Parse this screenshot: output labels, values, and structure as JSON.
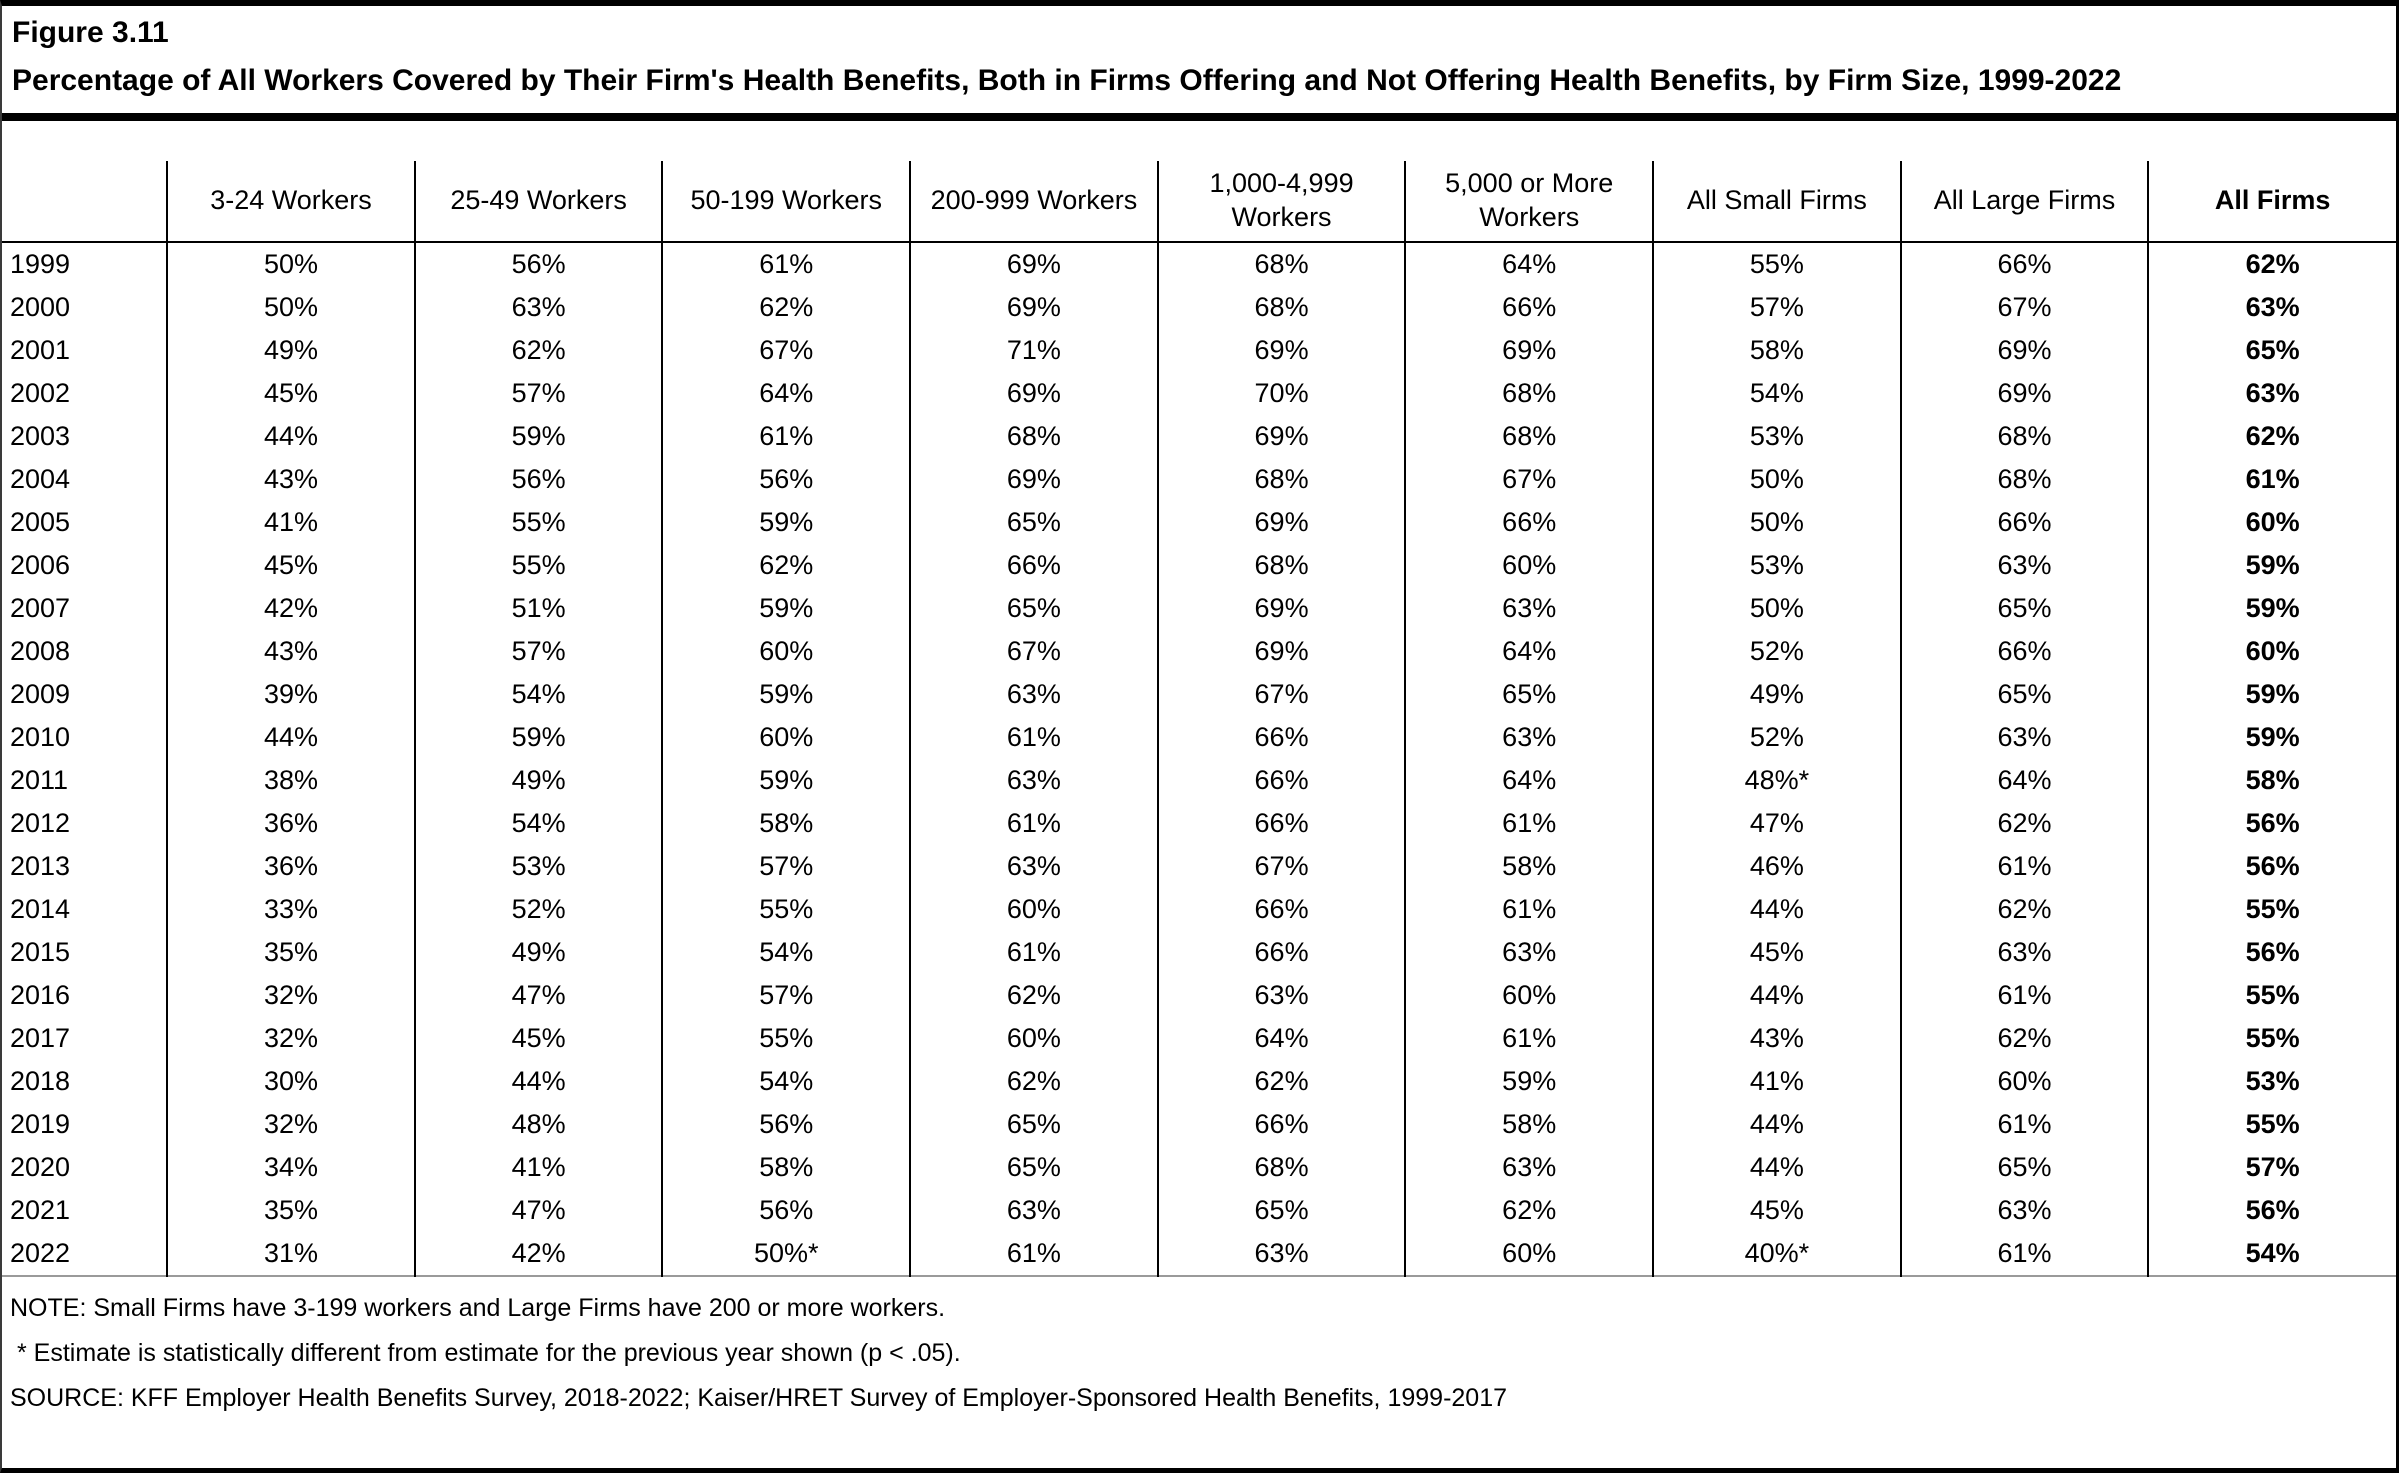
{
  "figure_label": "Figure 3.11",
  "title": "Percentage of All Workers Covered by Their Firm's Health Benefits, Both in Firms Offering and Not Offering Health Benefits, by Firm Size, 1999-2022",
  "chart_data": {
    "type": "table",
    "columns": [
      "",
      "3-24 Workers",
      "25-49 Workers",
      "50-199 Workers",
      "200-999 Workers",
      "1,000-4,999 Workers",
      "5,000 or More Workers",
      "All Small Firms",
      "All Large Firms",
      "All Firms"
    ],
    "rows": [
      {
        "year": "1999",
        "values": [
          "50%",
          "56%",
          "61%",
          "69%",
          "68%",
          "64%",
          "55%",
          "66%",
          "62%"
        ]
      },
      {
        "year": "2000",
        "values": [
          "50%",
          "63%",
          "62%",
          "69%",
          "68%",
          "66%",
          "57%",
          "67%",
          "63%"
        ]
      },
      {
        "year": "2001",
        "values": [
          "49%",
          "62%",
          "67%",
          "71%",
          "69%",
          "69%",
          "58%",
          "69%",
          "65%"
        ]
      },
      {
        "year": "2002",
        "values": [
          "45%",
          "57%",
          "64%",
          "69%",
          "70%",
          "68%",
          "54%",
          "69%",
          "63%"
        ]
      },
      {
        "year": "2003",
        "values": [
          "44%",
          "59%",
          "61%",
          "68%",
          "69%",
          "68%",
          "53%",
          "68%",
          "62%"
        ]
      },
      {
        "year": "2004",
        "values": [
          "43%",
          "56%",
          "56%",
          "69%",
          "68%",
          "67%",
          "50%",
          "68%",
          "61%"
        ]
      },
      {
        "year": "2005",
        "values": [
          "41%",
          "55%",
          "59%",
          "65%",
          "69%",
          "66%",
          "50%",
          "66%",
          "60%"
        ]
      },
      {
        "year": "2006",
        "values": [
          "45%",
          "55%",
          "62%",
          "66%",
          "68%",
          "60%",
          "53%",
          "63%",
          "59%"
        ]
      },
      {
        "year": "2007",
        "values": [
          "42%",
          "51%",
          "59%",
          "65%",
          "69%",
          "63%",
          "50%",
          "65%",
          "59%"
        ]
      },
      {
        "year": "2008",
        "values": [
          "43%",
          "57%",
          "60%",
          "67%",
          "69%",
          "64%",
          "52%",
          "66%",
          "60%"
        ]
      },
      {
        "year": "2009",
        "values": [
          "39%",
          "54%",
          "59%",
          "63%",
          "67%",
          "65%",
          "49%",
          "65%",
          "59%"
        ]
      },
      {
        "year": "2010",
        "values": [
          "44%",
          "59%",
          "60%",
          "61%",
          "66%",
          "63%",
          "52%",
          "63%",
          "59%"
        ]
      },
      {
        "year": "2011",
        "values": [
          "38%",
          "49%",
          "59%",
          "63%",
          "66%",
          "64%",
          "48%*",
          "64%",
          "58%"
        ]
      },
      {
        "year": "2012",
        "values": [
          "36%",
          "54%",
          "58%",
          "61%",
          "66%",
          "61%",
          "47%",
          "62%",
          "56%"
        ]
      },
      {
        "year": "2013",
        "values": [
          "36%",
          "53%",
          "57%",
          "63%",
          "67%",
          "58%",
          "46%",
          "61%",
          "56%"
        ]
      },
      {
        "year": "2014",
        "values": [
          "33%",
          "52%",
          "55%",
          "60%",
          "66%",
          "61%",
          "44%",
          "62%",
          "55%"
        ]
      },
      {
        "year": "2015",
        "values": [
          "35%",
          "49%",
          "54%",
          "61%",
          "66%",
          "63%",
          "45%",
          "63%",
          "56%"
        ]
      },
      {
        "year": "2016",
        "values": [
          "32%",
          "47%",
          "57%",
          "62%",
          "63%",
          "60%",
          "44%",
          "61%",
          "55%"
        ]
      },
      {
        "year": "2017",
        "values": [
          "32%",
          "45%",
          "55%",
          "60%",
          "64%",
          "61%",
          "43%",
          "62%",
          "55%"
        ]
      },
      {
        "year": "2018",
        "values": [
          "30%",
          "44%",
          "54%",
          "62%",
          "62%",
          "59%",
          "41%",
          "60%",
          "53%"
        ]
      },
      {
        "year": "2019",
        "values": [
          "32%",
          "48%",
          "56%",
          "65%",
          "66%",
          "58%",
          "44%",
          "61%",
          "55%"
        ]
      },
      {
        "year": "2020",
        "values": [
          "34%",
          "41%",
          "58%",
          "65%",
          "68%",
          "63%",
          "44%",
          "65%",
          "57%"
        ]
      },
      {
        "year": "2021",
        "values": [
          "35%",
          "47%",
          "56%",
          "63%",
          "65%",
          "62%",
          "45%",
          "63%",
          "56%"
        ]
      },
      {
        "year": "2022",
        "values": [
          "31%",
          "42%",
          "50%*",
          "61%",
          "63%",
          "60%",
          "40%*",
          "61%",
          "54%"
        ]
      }
    ]
  },
  "notes": {
    "note": "NOTE: Small Firms have 3-199 workers and Large Firms have 200 or more workers.",
    "asterisk": "* Estimate is statistically different from estimate for the previous year shown (p < .05).",
    "source": "SOURCE: KFF Employer Health Benefits Survey, 2018-2022; Kaiser/HRET Survey of Employer-Sponsored Health Benefits, 1999-2017"
  }
}
